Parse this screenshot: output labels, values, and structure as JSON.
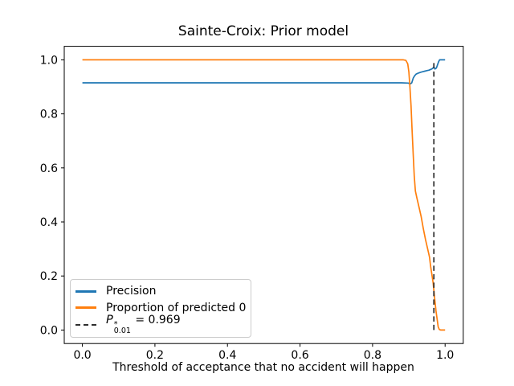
{
  "chart_data": {
    "type": "line",
    "title": "Sainte-Croix: Prior model",
    "xlabel": "Threshold of acceptance that no accident will happen",
    "ylabel": "",
    "xlim": [
      -0.05,
      1.05
    ],
    "ylim": [
      -0.05,
      1.05
    ],
    "grid": false,
    "legend_position": "lower-left",
    "x_ticks": [
      {
        "v": 0.0,
        "label": "0.0"
      },
      {
        "v": 0.2,
        "label": "0.2"
      },
      {
        "v": 0.4,
        "label": "0.4"
      },
      {
        "v": 0.6,
        "label": "0.6"
      },
      {
        "v": 0.8,
        "label": "0.8"
      },
      {
        "v": 1.0,
        "label": "1.0"
      }
    ],
    "y_ticks": [
      {
        "v": 0.0,
        "label": "0.0"
      },
      {
        "v": 0.2,
        "label": "0.2"
      },
      {
        "v": 0.4,
        "label": "0.4"
      },
      {
        "v": 0.6,
        "label": "0.6"
      },
      {
        "v": 0.8,
        "label": "0.8"
      },
      {
        "v": 1.0,
        "label": "1.0"
      }
    ],
    "series": [
      {
        "name": "Precision",
        "color": "#1f77b4",
        "points": [
          [
            0.0,
            0.915
          ],
          [
            0.2,
            0.915
          ],
          [
            0.4,
            0.915
          ],
          [
            0.6,
            0.915
          ],
          [
            0.8,
            0.915
          ],
          [
            0.88,
            0.915
          ],
          [
            0.898,
            0.914
          ],
          [
            0.904,
            0.911
          ],
          [
            0.908,
            0.915
          ],
          [
            0.912,
            0.932
          ],
          [
            0.916,
            0.941
          ],
          [
            0.92,
            0.947
          ],
          [
            0.926,
            0.951
          ],
          [
            0.932,
            0.954
          ],
          [
            0.938,
            0.956
          ],
          [
            0.944,
            0.958
          ],
          [
            0.95,
            0.96
          ],
          [
            0.956,
            0.962
          ],
          [
            0.961,
            0.965
          ],
          [
            0.965,
            0.968
          ],
          [
            0.969,
            0.973
          ],
          [
            0.972,
            0.966
          ],
          [
            0.976,
            0.97
          ],
          [
            0.979,
            0.981
          ],
          [
            0.982,
            0.993
          ],
          [
            0.985,
            1.0
          ],
          [
            1.0,
            1.0
          ]
        ]
      },
      {
        "name": "Proportion of predicted 0",
        "color": "#ff7f0e",
        "points": [
          [
            0.0,
            1.0
          ],
          [
            0.2,
            1.0
          ],
          [
            0.4,
            1.0
          ],
          [
            0.6,
            1.0
          ],
          [
            0.8,
            1.0
          ],
          [
            0.885,
            1.0
          ],
          [
            0.892,
            0.998
          ],
          [
            0.897,
            0.985
          ],
          [
            0.9,
            0.955
          ],
          [
            0.903,
            0.9
          ],
          [
            0.906,
            0.83
          ],
          [
            0.909,
            0.74
          ],
          [
            0.912,
            0.65
          ],
          [
            0.915,
            0.57
          ],
          [
            0.918,
            0.515
          ],
          [
            0.922,
            0.49
          ],
          [
            0.928,
            0.455
          ],
          [
            0.934,
            0.42
          ],
          [
            0.94,
            0.375
          ],
          [
            0.946,
            0.335
          ],
          [
            0.952,
            0.3
          ],
          [
            0.957,
            0.27
          ],
          [
            0.96,
            0.235
          ],
          [
            0.963,
            0.21
          ],
          [
            0.967,
            0.175
          ],
          [
            0.971,
            0.12
          ],
          [
            0.975,
            0.07
          ],
          [
            0.978,
            0.04
          ],
          [
            0.981,
            0.012
          ],
          [
            0.984,
            0.002
          ],
          [
            0.988,
            0.0
          ],
          [
            1.0,
            0.0
          ]
        ]
      }
    ],
    "threshold_line": {
      "x": 0.969,
      "y_span": [
        0.0,
        1.0
      ],
      "style": "dashed",
      "color": "#2e2e2e",
      "label_plain": "P*0.01 = 0.969"
    }
  },
  "legend": {
    "items": [
      {
        "swatch": "solid",
        "color": "#1f77b4",
        "label": "Precision"
      },
      {
        "swatch": "solid",
        "color": "#ff7f0e",
        "label": "Proportion of predicted 0"
      },
      {
        "swatch": "dashed",
        "color": "#2e2e2e",
        "math": {
          "base": "P",
          "sup": "*",
          "sub": "0.01",
          "rest": " = 0.969"
        }
      }
    ]
  },
  "style": {
    "spine_color": "#000000",
    "tick_color": "#000000",
    "background": "#ffffff",
    "legend_border": "#cccccc"
  }
}
